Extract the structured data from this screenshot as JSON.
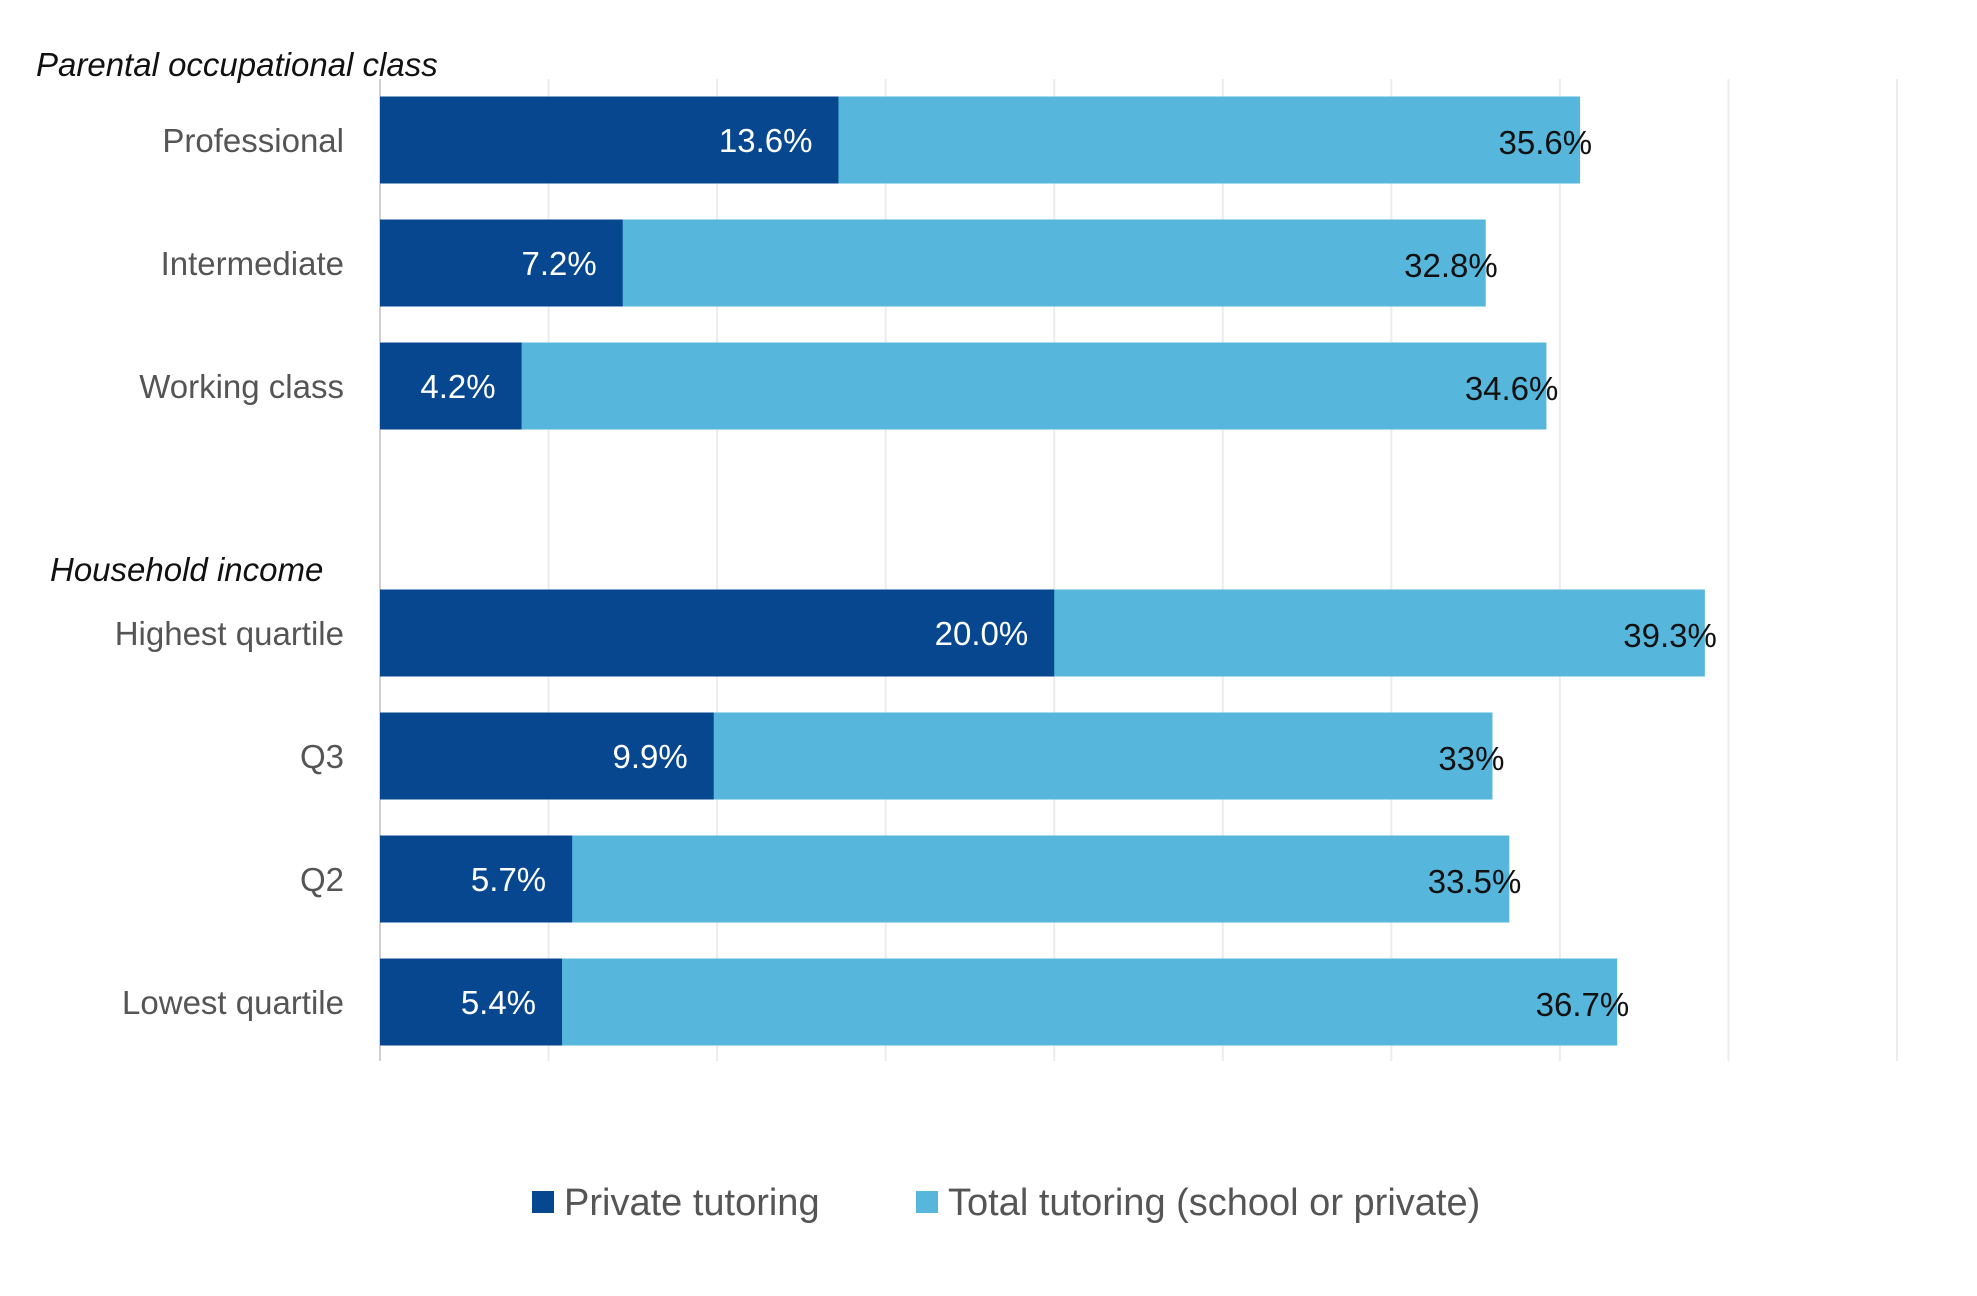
{
  "chart_data": {
    "type": "bar",
    "orientation": "horizontal",
    "xlim": [
      0,
      45
    ],
    "grid": true,
    "legend_placement": "bottom",
    "groups": [
      {
        "title": "Parental occupational class",
        "categories": [
          "Professional",
          "Intermediate",
          "Working class"
        ],
        "private": [
          13.6,
          7.2,
          4.2
        ],
        "private_labels": [
          "13.6%",
          "7.2%",
          "4.2%"
        ],
        "total": [
          35.6,
          32.8,
          34.6
        ],
        "total_labels": [
          "35.6%",
          "32.8%",
          "34.6%"
        ]
      },
      {
        "title": "Household income",
        "categories": [
          "Highest quartile",
          "Q3",
          "Q2",
          "Lowest quartile"
        ],
        "private": [
          20.0,
          9.9,
          5.7,
          5.4
        ],
        "private_labels": [
          "20.0%",
          "9.9%",
          "5.7%",
          "5.4%"
        ],
        "total": [
          39.3,
          33,
          33.5,
          36.7
        ],
        "total_labels": [
          "39.3%",
          "33%",
          "33.5%",
          "36.7%"
        ]
      }
    ],
    "series": [
      {
        "name": "Private tutoring",
        "color": "#06478f"
      },
      {
        "name": "Total tutoring (school or private)",
        "color": "#56b6dc"
      }
    ]
  }
}
